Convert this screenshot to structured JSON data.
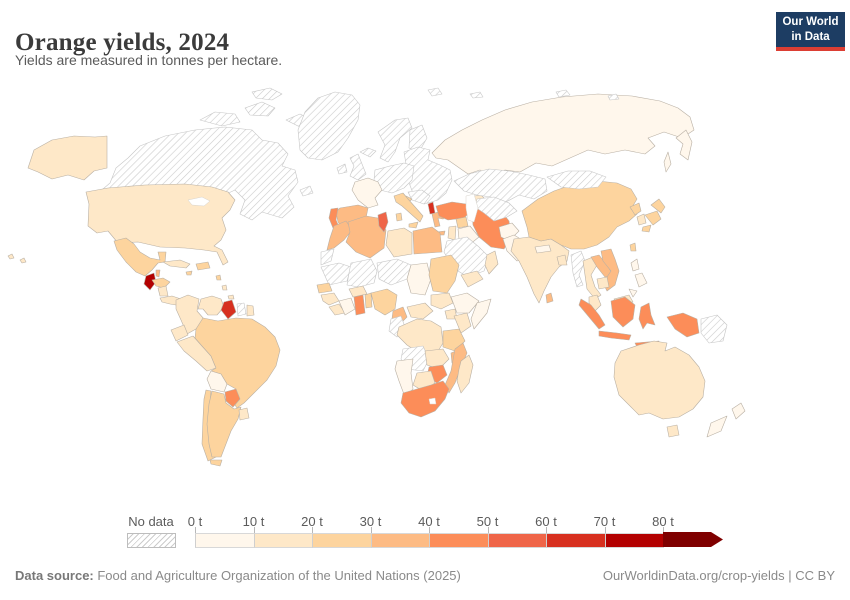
{
  "header": {
    "title": "Orange yields, 2024",
    "subtitle": "Yields are measured in tonnes per hectare.",
    "logo_line1": "Our World",
    "logo_line2": "in Data"
  },
  "legend": {
    "no_data_label": "No data",
    "ticks": [
      "0 t",
      "10 t",
      "20 t",
      "30 t",
      "40 t",
      "50 t",
      "60 t",
      "70 t",
      "80 t"
    ],
    "colors": [
      "#fff7ec",
      "#fee8c8",
      "#fdd49e",
      "#fdbb84",
      "#fc8d59",
      "#ef6548",
      "#d7301f",
      "#b30000",
      "#7f0000"
    ],
    "bins": [
      "0-10",
      "10-20",
      "20-30",
      "30-40",
      "40-50",
      "50-60",
      "60-70",
      "70-80",
      "80+"
    ]
  },
  "footer": {
    "source_label": "Data source:",
    "source_text": " Food and Agriculture Organization of the United Nations (2025)",
    "attribution": "OurWorldinData.org/crop-yields | CC BY"
  },
  "map": {
    "ocean_color": "#ffffff",
    "border_color": "#b9b0a4",
    "nodata_border": "#c6c6c6",
    "nodata_style": "hatched"
  },
  "chart_data": {
    "type": "choropleth",
    "title": "Orange yields, 2024",
    "unit": "tonnes per hectare",
    "bin_edges": [
      0,
      10,
      20,
      30,
      40,
      50,
      60,
      70,
      80
    ],
    "bin_colors": [
      "#fff7ec",
      "#fee8c8",
      "#fdd49e",
      "#fdbb84",
      "#fc8d59",
      "#ef6548",
      "#d7301f",
      "#b30000",
      "#7f0000"
    ],
    "no_data_style": "hatched",
    "countries": {
      "canada": "nodata",
      "greenland": "nodata",
      "iceland": "nodata",
      "ireland": "nodata",
      "united-kingdom": "nodata",
      "norway-sweden": "nodata",
      "finland": "nodata",
      "denmark": "nodata",
      "central-europe": "nodata",
      "east-europe": "nodata",
      "balkans": "nodata",
      "svalbard": "nodata",
      "arctic-islands": "nodata",
      "newfoundland": "nodata",
      "saudi-arabia": "nodata",
      "kazakhstan": "nodata",
      "central-asia": "nodata",
      "mongolia": "nodata",
      "myanmar": "nodata",
      "papua-new-guinea": "nodata",
      "suriname": "nodata",
      "western-sahara": "nodata",
      "mauritania": "nodata",
      "mali": "nodata",
      "niger": "nodata",
      "congo-gabon": "nodata",
      "angola": "nodata",
      "france": "0-10",
      "bolivia": "0-10",
      "russia": "0-10",
      "iraq": "0-10",
      "afghanistan": "0-10",
      "pakistan": "0-10",
      "nepal": "0-10",
      "philippines": "0-10",
      "ivory-coast": "0-10",
      "chad": "0-10",
      "ethiopia": "0-10",
      "somalia": "0-10",
      "namibia": "0-10",
      "new-zealand": "0-10",
      "united-states": "10-20",
      "cuba": "10-20",
      "colombia": "10-20",
      "venezuela": "10-20",
      "ecuador": "10-20",
      "peru": "10-20",
      "uruguay": "10-20",
      "french-guiana": "10-20",
      "costa-rica-panama": "10-20",
      "nicaragua": "10-20",
      "trinidad": "10-20",
      "yemen": "10-20",
      "oman": "10-20",
      "caucasus": "10-20",
      "israel-jordan": "10-20",
      "thailand": "10-20",
      "cambodia": "10-20",
      "malaysia": "10-20",
      "south-korea": "10-20",
      "india": "10-20",
      "bangladesh": "10-20",
      "australia": "10-20",
      "guinea": "10-20",
      "sierra-leone-liberia": "10-20",
      "burkina-faso": "10-20",
      "central-african-republic": "10-20",
      "south-sudan": "10-20",
      "dr-congo": "10-20",
      "uganda": "10-20",
      "kenya": "10-20",
      "zambia": "10-20",
      "botswana": "10-20",
      "madagascar": "10-20",
      "libya": "10-20",
      "hawaii": "10-20",
      "antilles-2": "10-20",
      "mexico": "20-30",
      "honduras": "20-30",
      "hispaniola": "20-30",
      "jamaica": "20-30",
      "brazil": "20-30",
      "chile": "20-30",
      "argentina": "20-30",
      "italy": "20-30",
      "croatia": "20-30",
      "syria": "20-30",
      "china": "20-30",
      "taiwan": "20-30",
      "north-korea": "20-30",
      "japan": "20-30",
      "senegal": "20-30",
      "togo-benin": "20-30",
      "nigeria": "20-30",
      "sudan": "20-30",
      "tanzania": "20-30",
      "antilles-1": "20-30",
      "spain": "30-40",
      "greece": "30-40",
      "morocco": "30-40",
      "algeria": "30-40",
      "egypt": "30-40",
      "cameroon": "30-40",
      "mozambique": "30-40",
      "malawi": "30-40",
      "laos": "30-40",
      "vietnam": "30-40",
      "sri-lanka": "30-40",
      "belize": "30-40",
      "portugal": "40-50",
      "paraguay": "40-50",
      "turkey": "40-50",
      "iran": "40-50",
      "ghana": "40-50",
      "zimbabwe": "40-50",
      "south-africa": "40-50",
      "indonesia": "40-50",
      "tunisia": "50-60",
      "guyana": "60-70",
      "albania": "60-70",
      "guatemala": "70-80"
    }
  }
}
